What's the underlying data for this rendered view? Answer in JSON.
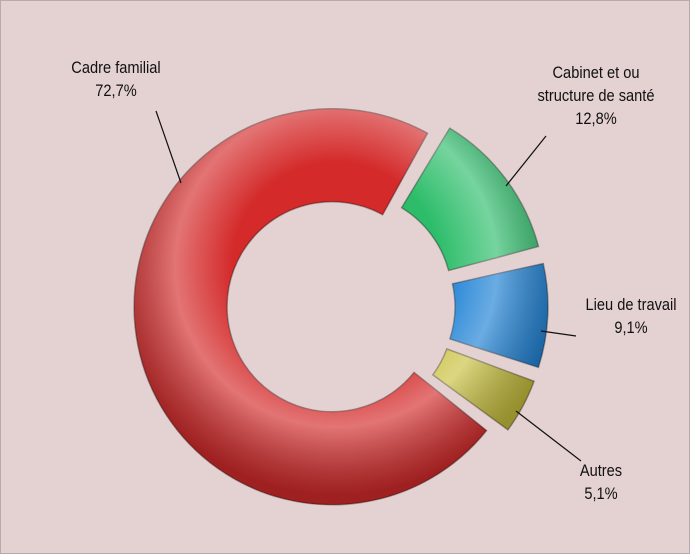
{
  "chart_data": {
    "type": "donut",
    "categories": [
      "Cadre familial",
      "Cabinet et ou structure de santé",
      "Lieu de travail",
      "Autres"
    ],
    "values": [
      72.7,
      12.8,
      9.1,
      5.1
    ],
    "value_labels": [
      "72,7%",
      "12,8%",
      "9,1%",
      "5,1%"
    ],
    "colors": [
      "#d42a2a",
      "#2dbd6a",
      "#1a7fd4",
      "#c9c03e"
    ]
  }
}
